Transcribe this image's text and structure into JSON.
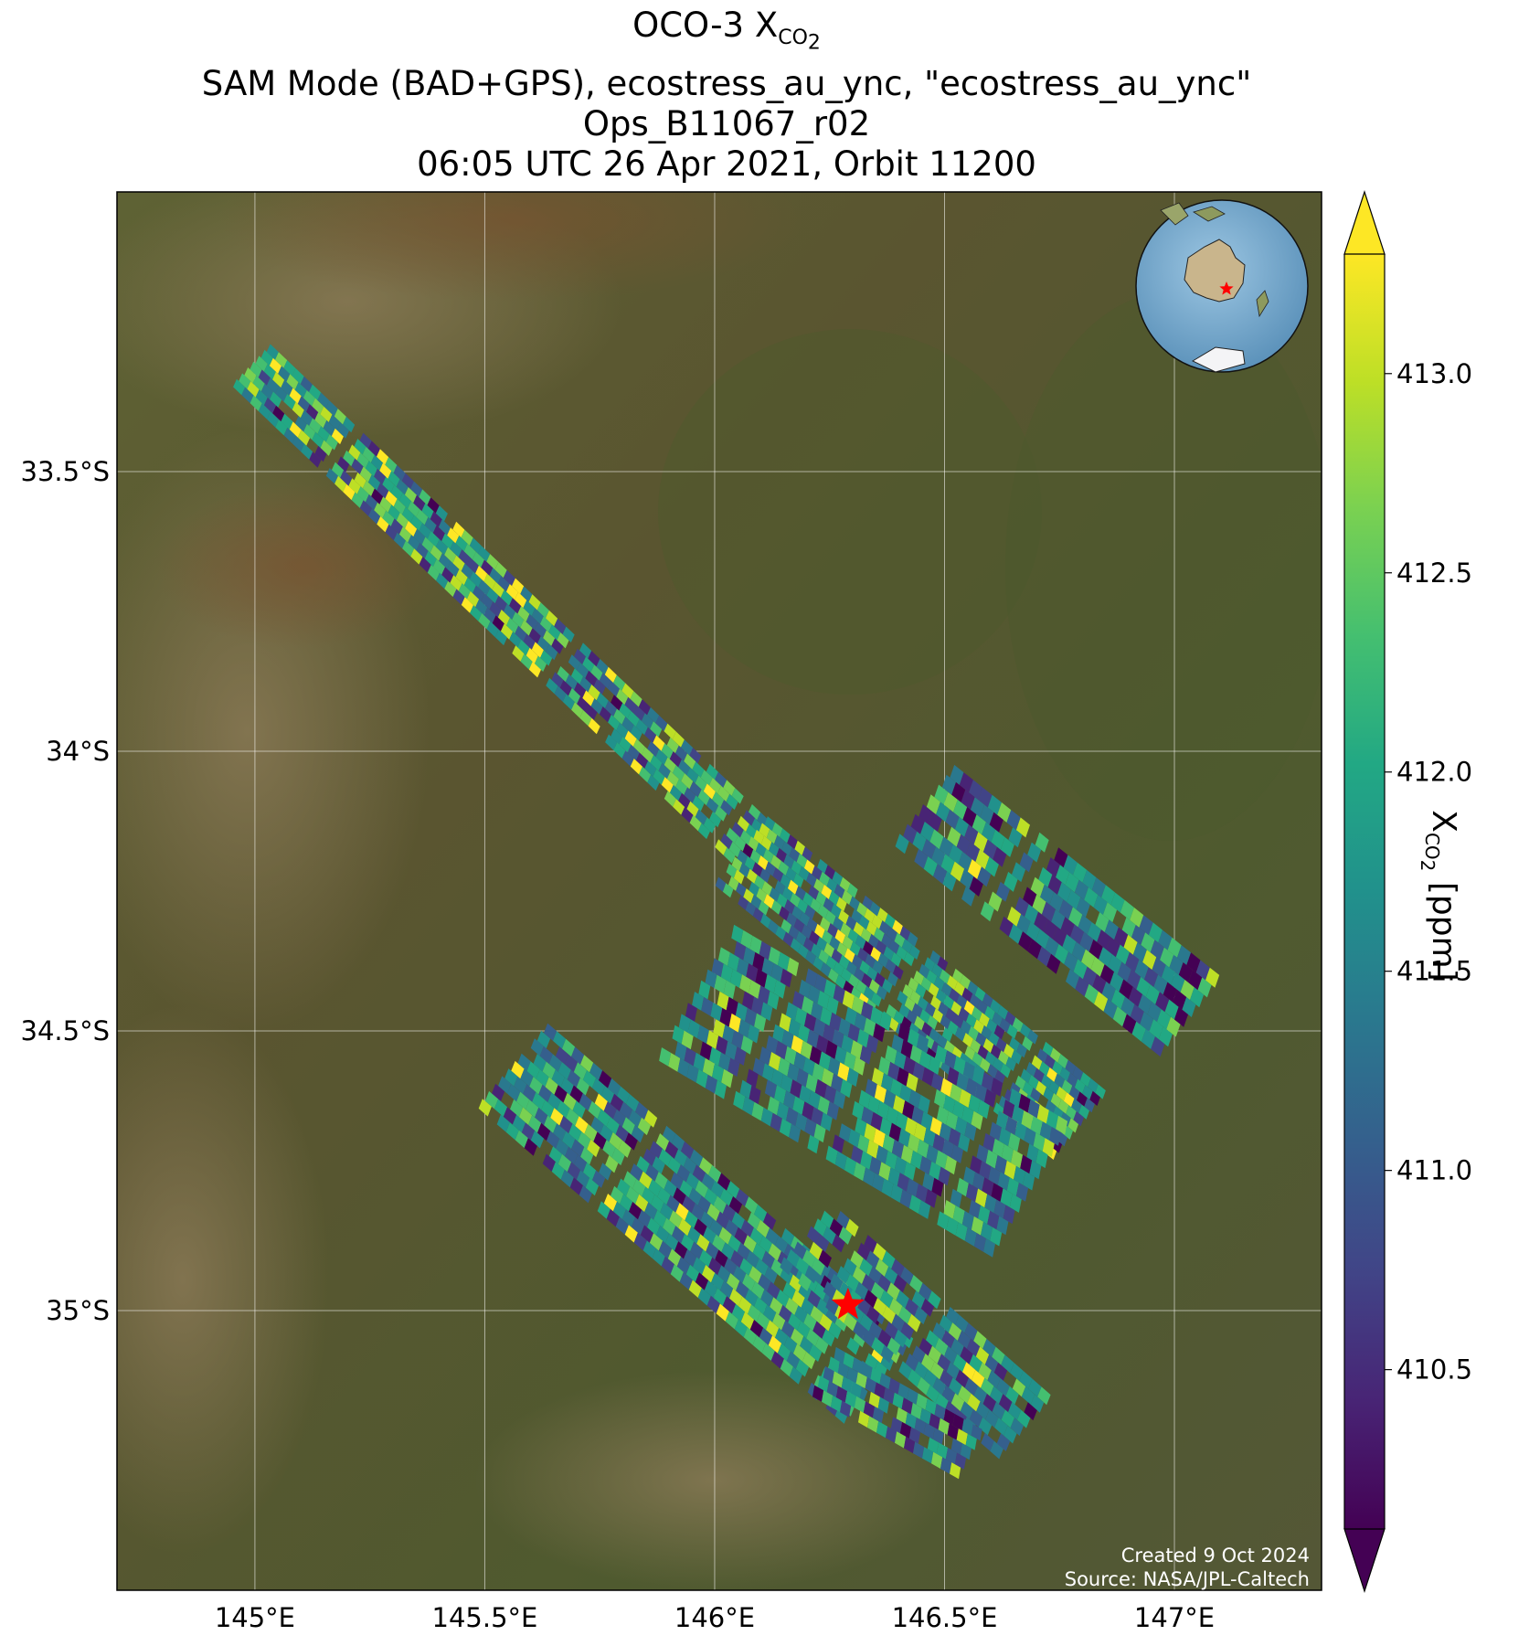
{
  "title": {
    "line1_main": "OCO-3 X",
    "line1_sub": "CO",
    "line1_sub2": "2",
    "line2": "SAM Mode (BAD+GPS), ecostress_au_ync, \"ecostress_au_ync\"",
    "line3": "Ops_B11067_r02",
    "line4": "06:05 UTC 26 Apr 2021, Orbit 11200"
  },
  "map": {
    "lon_range": [
      144.7,
      147.32
    ],
    "lat_range": [
      -35.5,
      -33.0
    ],
    "lon_ticks": [
      145.0,
      145.5,
      146.0,
      146.5,
      147.0
    ],
    "lon_tick_labels": [
      "145°E",
      "145.5°E",
      "146°E",
      "146.5°E",
      "147°E"
    ],
    "lat_ticks": [
      -33.5,
      -34.0,
      -34.5,
      -35.0
    ],
    "lat_tick_labels": [
      "33.5°S",
      "34°S",
      "34.5°S",
      "35°S"
    ],
    "target": {
      "lon": 146.29,
      "lat": -34.99,
      "color": "#ff0000"
    },
    "background": "satellite imagery",
    "gridlines": true
  },
  "colorbar": {
    "colormap": "viridis",
    "range": [
      410.1,
      413.3
    ],
    "ticks": [
      410.5,
      411.0,
      411.5,
      412.0,
      412.5,
      413.0
    ],
    "tick_labels": [
      "410.5",
      "411.0",
      "411.5",
      "412.0",
      "412.5",
      "413.0"
    ],
    "extend": "both",
    "label_main": "X",
    "label_sub": "CO",
    "label_sub2": "2",
    "label_unit": " [ppm]"
  },
  "inset_globe": {
    "center": "Australia",
    "marker_color": "#ff0000"
  },
  "credits": {
    "created": "Created 9 Oct 2024",
    "source": "Source: NASA/JPL-Caltech"
  }
}
